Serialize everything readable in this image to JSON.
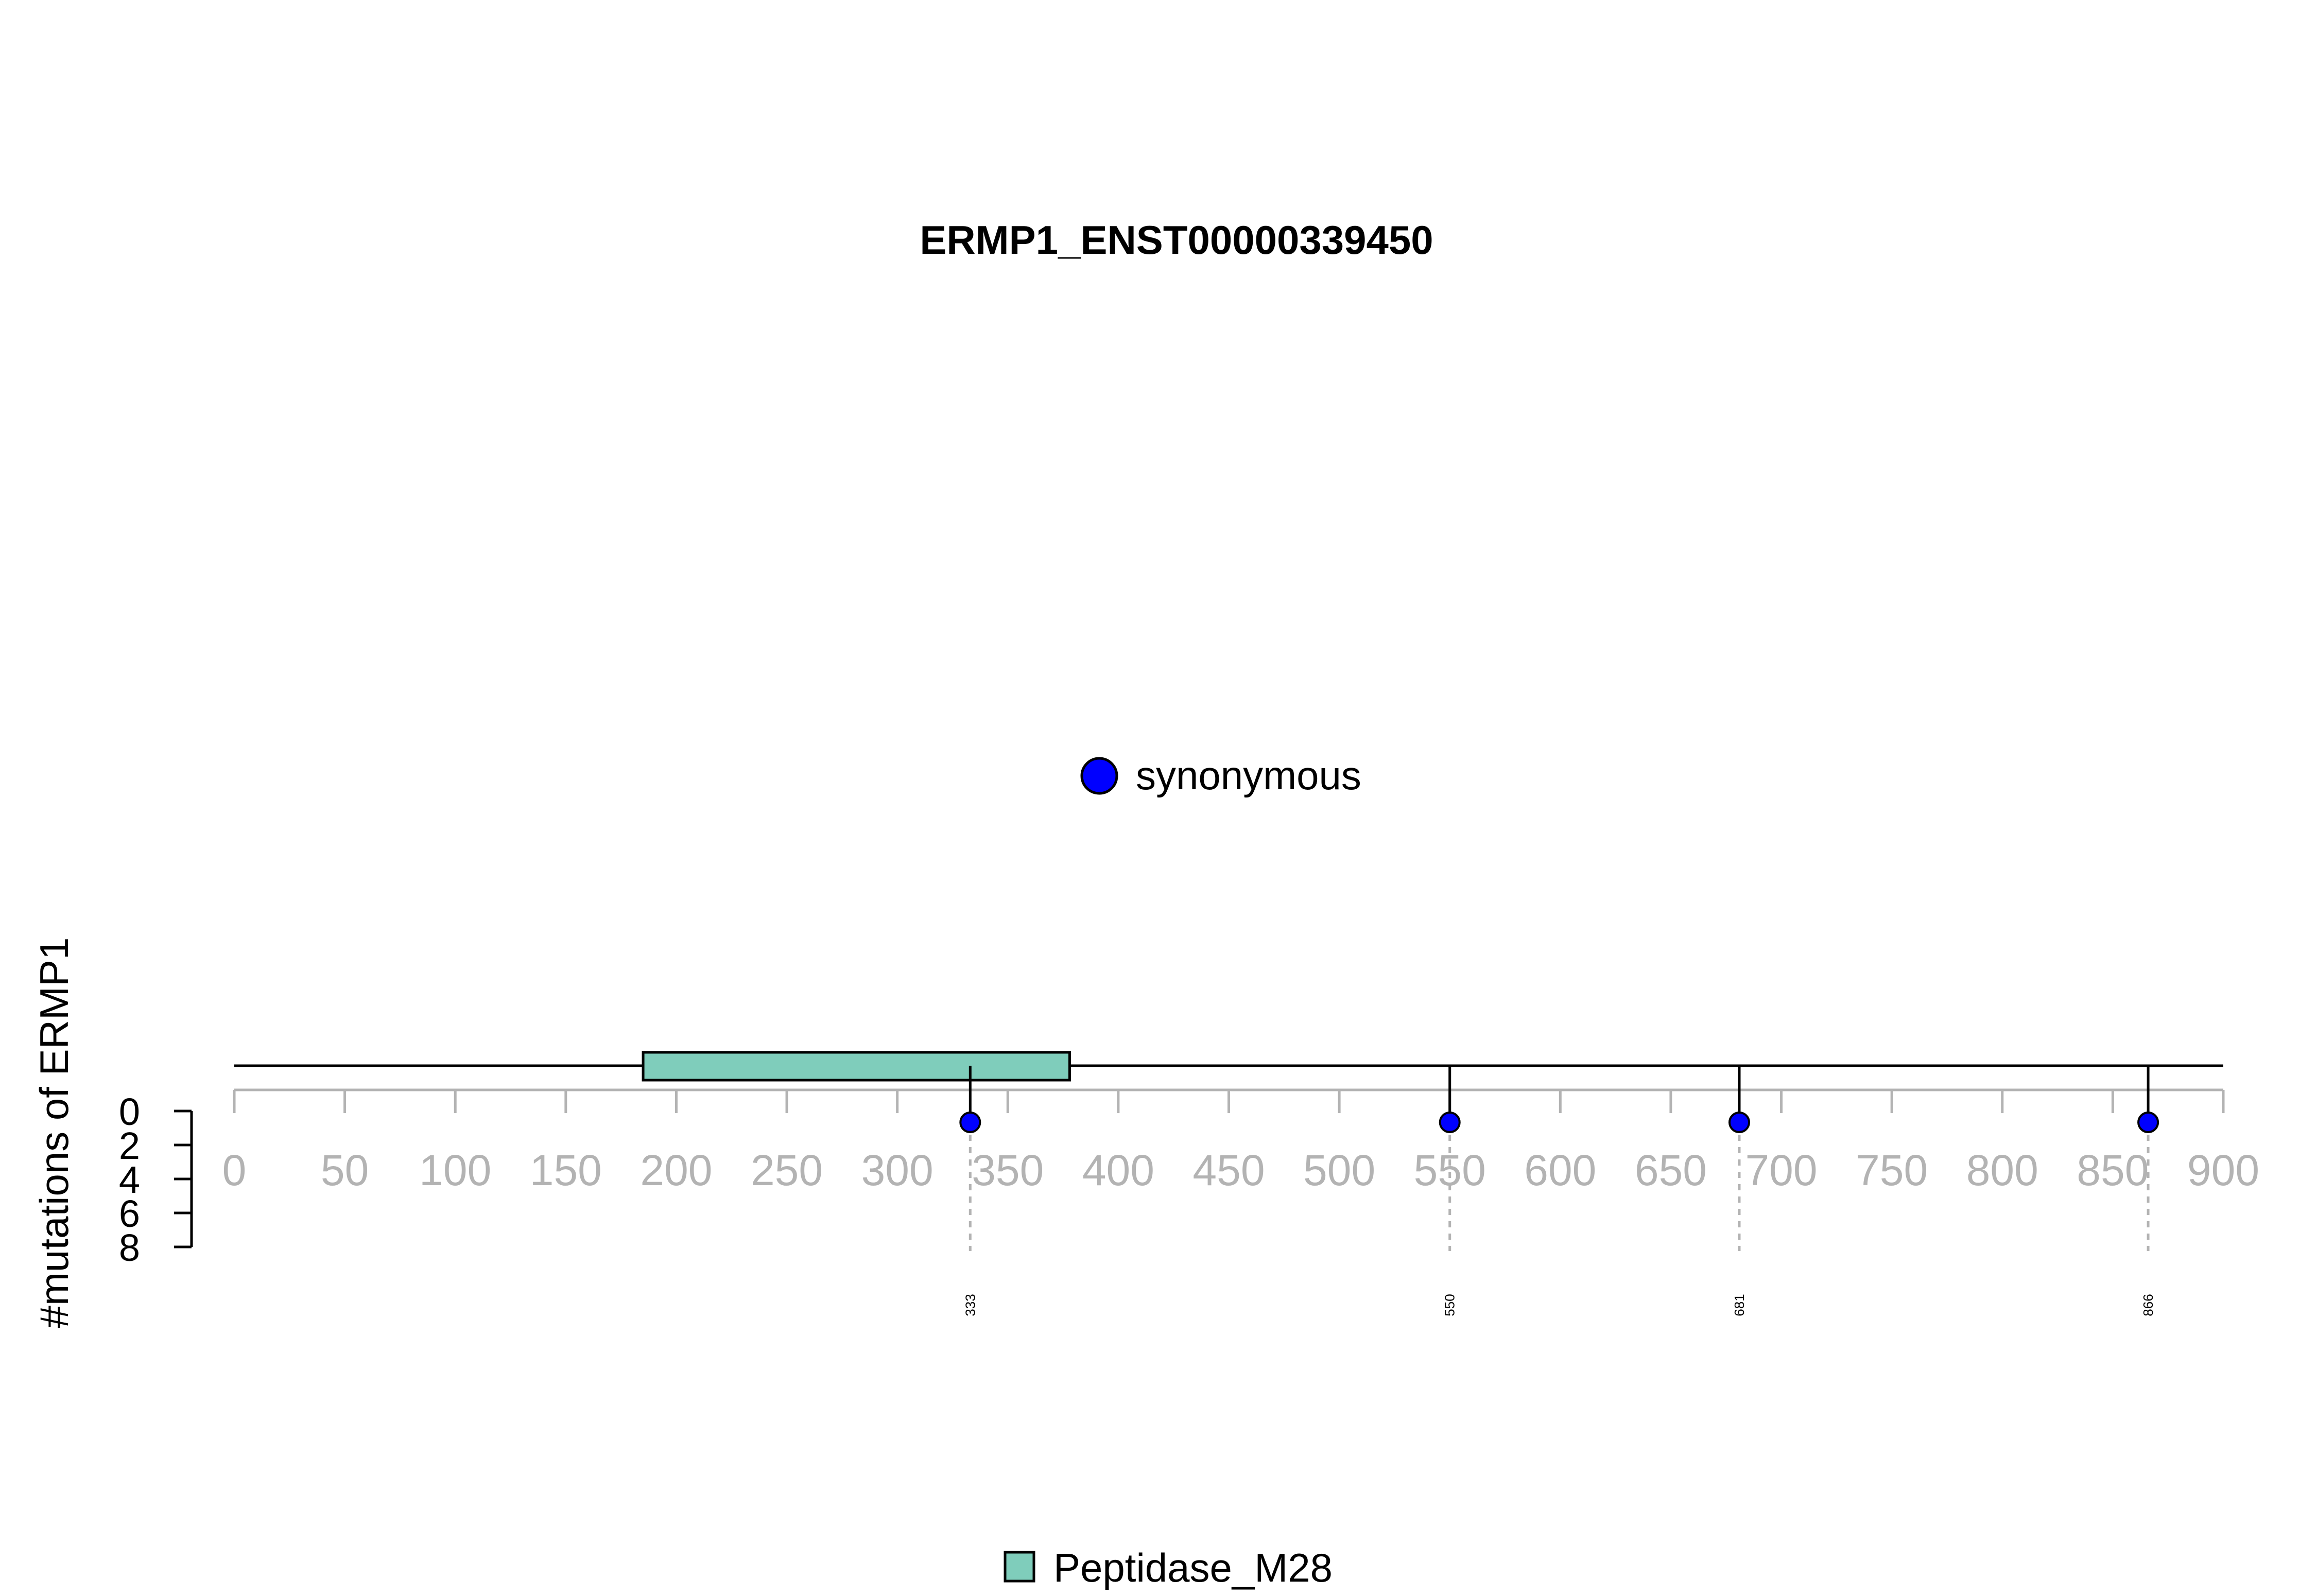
{
  "chart_data": {
    "type": "lollipop",
    "title": "ERMP1_ENST00000339450",
    "ylabel": "#mutations of ERMP1",
    "protein_length": 900,
    "x_ticks": [
      "0",
      "50",
      "100",
      "150",
      "200",
      "250",
      "300",
      "350",
      "400",
      "450",
      "500",
      "550",
      "600",
      "650",
      "700",
      "750",
      "800",
      "850",
      "900"
    ],
    "y_ticks": [
      "0",
      "2",
      "4",
      "6",
      "8"
    ],
    "ylim": [
      0,
      8
    ],
    "mutation_legend": {
      "label": "synonymous",
      "color": "#0000ff"
    },
    "mutations": [
      {
        "position": 333,
        "label": "333",
        "count": 1,
        "type": "synonymous"
      },
      {
        "position": 550,
        "label": "550",
        "count": 1,
        "type": "synonymous"
      },
      {
        "position": 681,
        "label": "681",
        "count": 1,
        "type": "synonymous"
      },
      {
        "position": 866,
        "label": "866",
        "count": 1,
        "type": "synonymous"
      }
    ],
    "domains": [
      {
        "name": "Peptidase_M28",
        "start": 185,
        "end": 378,
        "color": "#7fcdbb"
      }
    ],
    "domain_legend": {
      "label": "Peptidase_M28",
      "color": "#7fcdbb"
    }
  }
}
